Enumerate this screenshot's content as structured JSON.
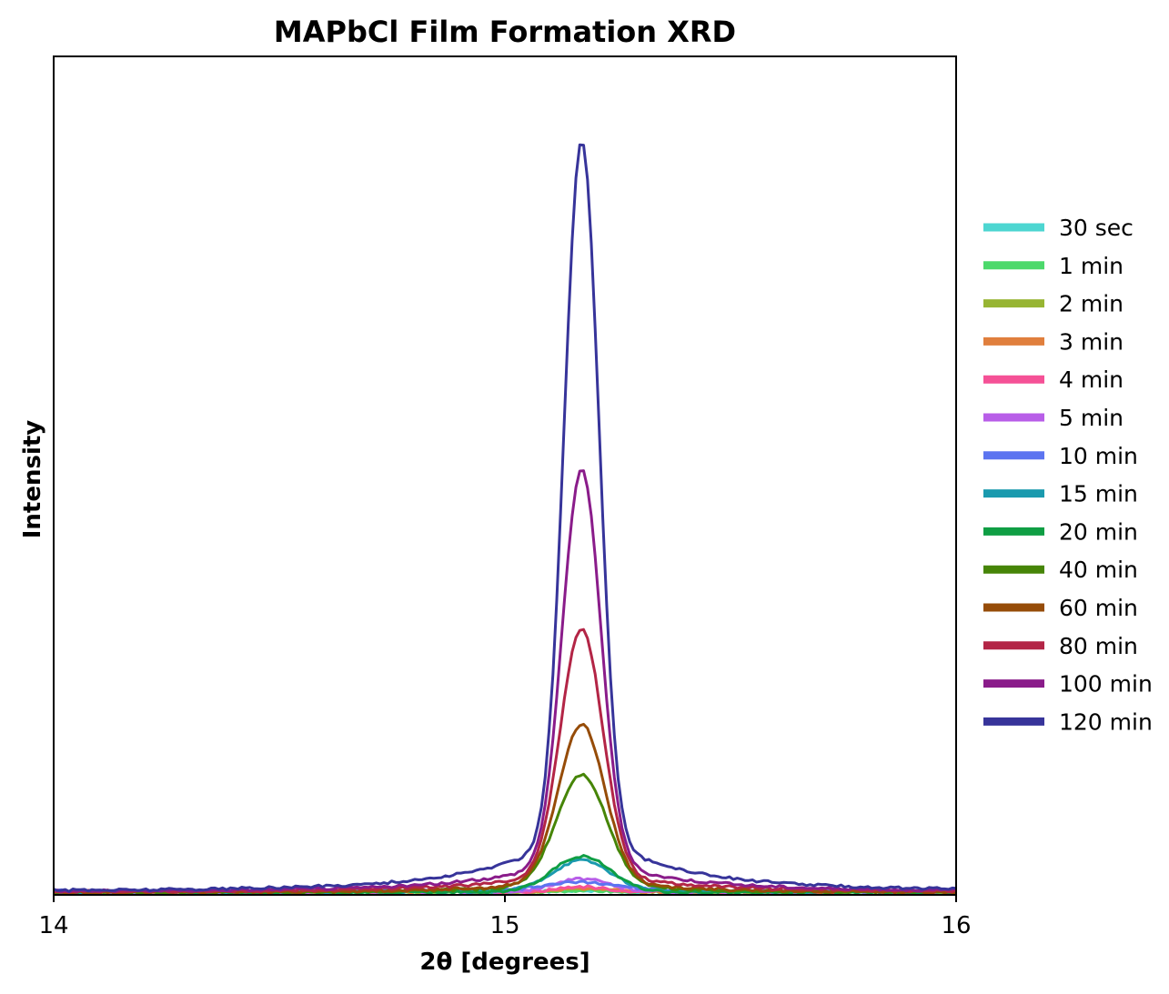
{
  "chart_data": {
    "type": "line",
    "title": "MAPbCl Film Formation XRD",
    "xlabel": "2θ [degrees]",
    "ylabel": "Intensity",
    "xlim": [
      14,
      16
    ],
    "ylim": [
      0,
      1.0
    ],
    "xticks": [
      "14",
      "15",
      "16"
    ],
    "yticks_visible": false,
    "legend_position": "outside-right",
    "peak_center": 15.17,
    "series": [
      {
        "name": "30 sec",
        "color": "#4dd6d1",
        "peak": 0.002,
        "fwhm": 0.12,
        "baseline": 0.004
      },
      {
        "name": "1 min",
        "color": "#4cd96b",
        "peak": 0.003,
        "fwhm": 0.12,
        "baseline": 0.003
      },
      {
        "name": "2 min",
        "color": "#97b533",
        "peak": 0.004,
        "fwhm": 0.12,
        "baseline": 0.004
      },
      {
        "name": "3 min",
        "color": "#e07f3d",
        "peak": 0.005,
        "fwhm": 0.12,
        "baseline": 0.004
      },
      {
        "name": "4 min",
        "color": "#f55196",
        "peak": 0.007,
        "fwhm": 0.12,
        "baseline": 0.004
      },
      {
        "name": "5 min",
        "color": "#b85ee8",
        "peak": 0.018,
        "fwhm": 0.14,
        "baseline": 0.004
      },
      {
        "name": "10 min",
        "color": "#5c74f0",
        "peak": 0.012,
        "fwhm": 0.2,
        "baseline": 0.005
      },
      {
        "name": "15 min",
        "color": "#1a9aae",
        "peak": 0.043,
        "fwhm": 0.15,
        "baseline": 0.004
      },
      {
        "name": "20 min",
        "color": "#0f9e44",
        "peak": 0.05,
        "fwhm": 0.15,
        "baseline": 0.003
      },
      {
        "name": "40 min",
        "color": "#468507",
        "peak": 0.157,
        "fwhm": 0.13,
        "baseline": 0.003
      },
      {
        "name": "60 min",
        "color": "#964c08",
        "peak": 0.224,
        "fwhm": 0.12,
        "baseline": 0.003
      },
      {
        "name": "80 min",
        "color": "#b32546",
        "peak": 0.35,
        "fwhm": 0.11,
        "baseline": 0.004
      },
      {
        "name": "100 min",
        "color": "#8a1c8a",
        "peak": 0.563,
        "fwhm": 0.1,
        "baseline": 0.004
      },
      {
        "name": "120 min",
        "color": "#37349a",
        "peak": 1.0,
        "fwhm": 0.09,
        "baseline": 0.004
      }
    ]
  }
}
